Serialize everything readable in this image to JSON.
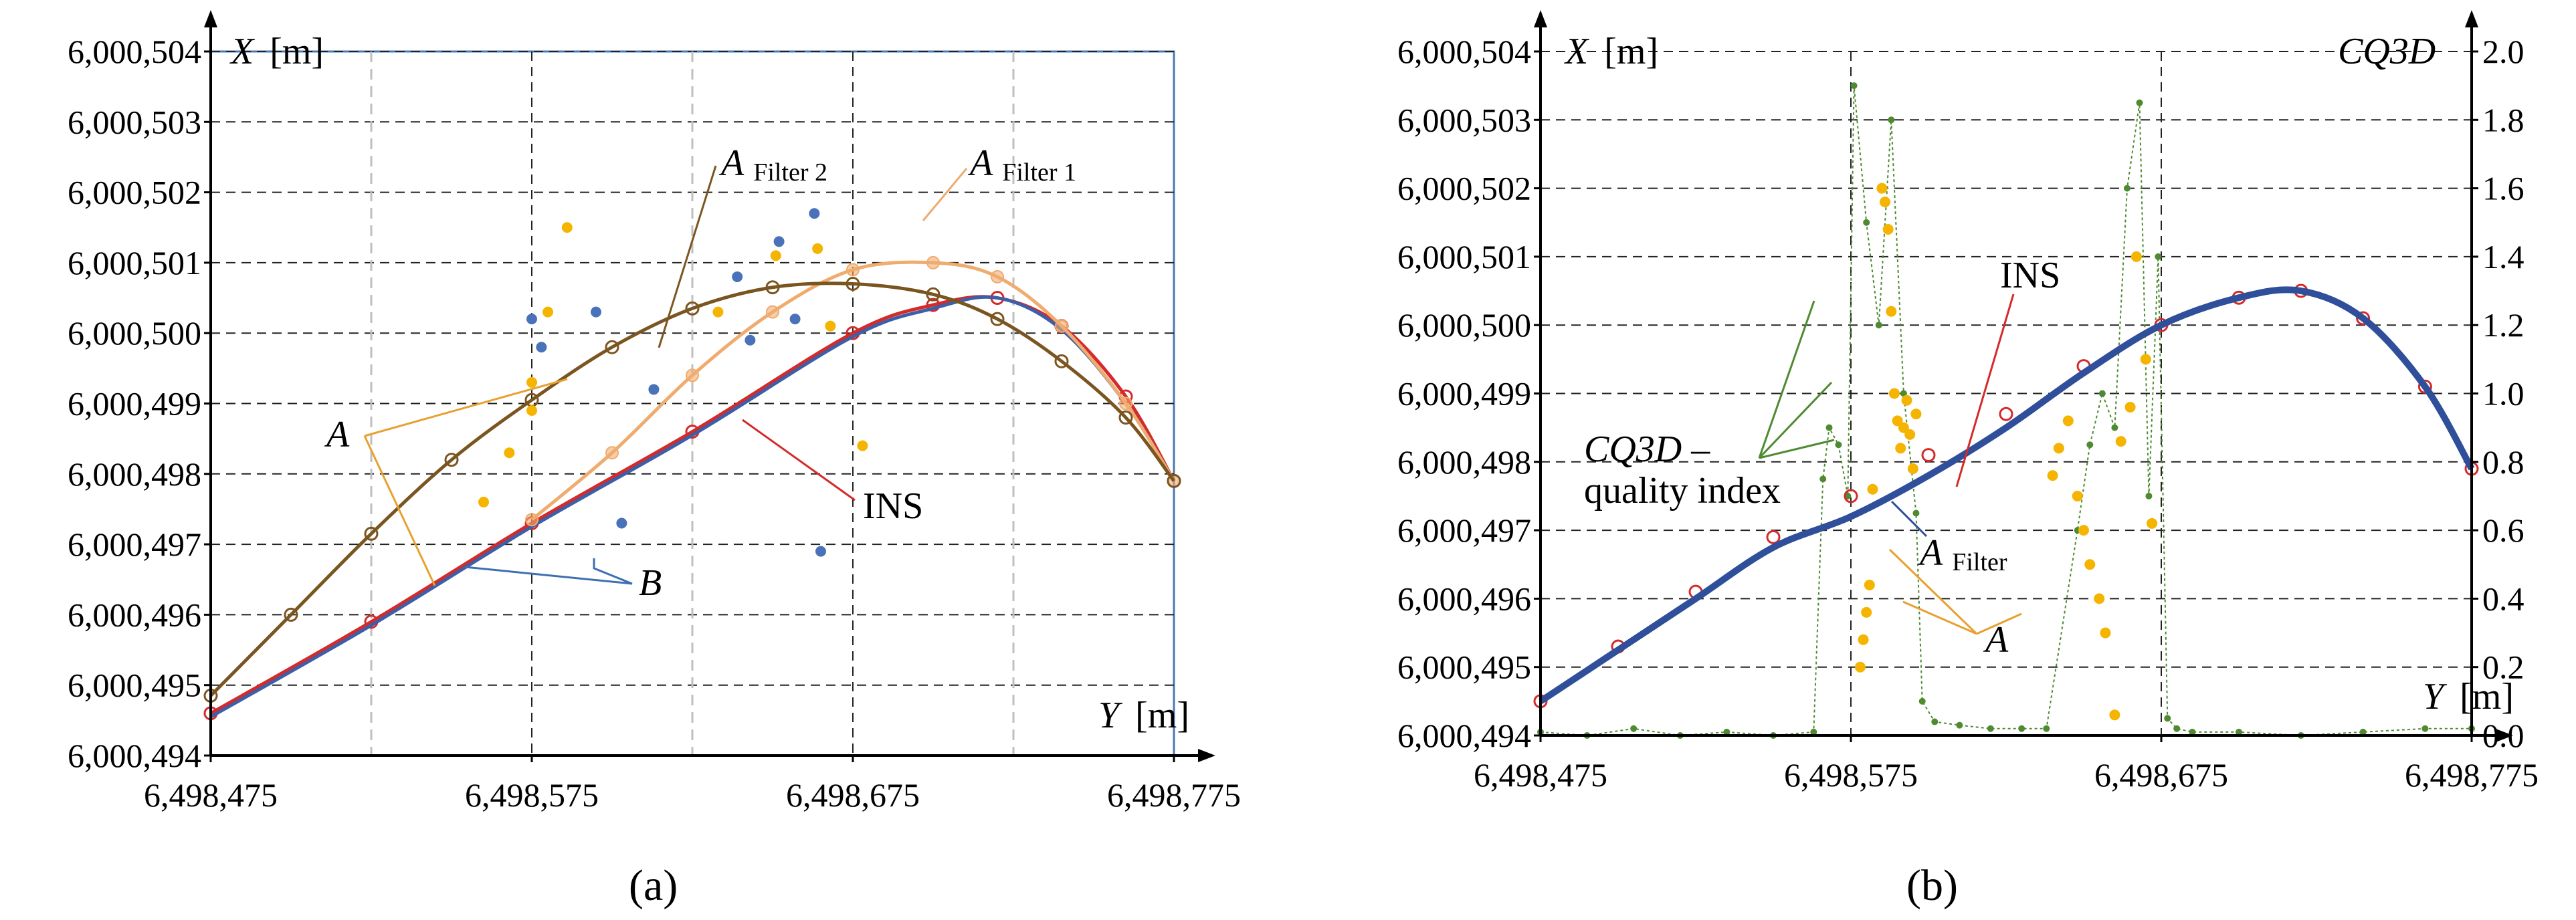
{
  "chart_data": [
    {
      "type": "scatter",
      "panel": "a",
      "caption": "(a)",
      "x_axis": {
        "label_var": "Y",
        "label_unit": "[m]",
        "range": [
          6498475,
          6498775
        ],
        "ticks": [
          6498475,
          6498575,
          6498675,
          6498775
        ],
        "tick_labels": [
          "6,498,475",
          "6,498,575",
          "6,498,675",
          "6,498,775"
        ],
        "gridlines": [
          6498525,
          6498575,
          6498625,
          6498675,
          6498725
        ]
      },
      "y_axis": {
        "label_var": "X",
        "label_unit": "[m]",
        "range": [
          6000494,
          6000504
        ],
        "ticks": [
          6000494,
          6000495,
          6000496,
          6000497,
          6000498,
          6000499,
          6000500,
          6000501,
          6000502,
          6000503,
          6000504
        ],
        "tick_labels": [
          "6,000,494",
          "6,000,495",
          "6,000,496",
          "6,000,497",
          "6,000,498",
          "6,000,499",
          "6,000,500",
          "6,000,501",
          "6,000,502",
          "6,000,503",
          "6,000,504"
        ]
      },
      "series": [
        {
          "name": "INS",
          "style": "line-open-circles",
          "color": "#d42a2a",
          "x": [
            6498475,
            6498525,
            6498575,
            6498625,
            6498675,
            6498700,
            6498720,
            6498740,
            6498760,
            6498775
          ],
          "y": [
            6000494.6,
            6000495.9,
            6000497.3,
            6000498.6,
            6000500.0,
            6000500.4,
            6000500.5,
            6000500.1,
            6000499.1,
            6000497.9
          ]
        },
        {
          "name": "B",
          "style": "line",
          "color": "#3d5fa8",
          "x": [
            6498475,
            6498525,
            6498575,
            6498625,
            6498675,
            6498700,
            6498720,
            6498740,
            6498760,
            6498775
          ],
          "y": [
            6000494.55,
            6000495.85,
            6000497.25,
            6000498.55,
            6000499.95,
            6000500.35,
            6000500.5,
            6000500.05,
            6000499.0,
            6000497.9
          ]
        },
        {
          "name": "A Filter 1",
          "style": "line-filled-circles",
          "color": "#f0ab6e",
          "x": [
            6498575,
            6498600,
            6498625,
            6498650,
            6498675,
            6498700,
            6498720,
            6498740,
            6498760,
            6498775
          ],
          "y": [
            6000497.35,
            6000498.3,
            6000499.4,
            6000500.3,
            6000500.9,
            6000501.0,
            6000500.8,
            6000500.1,
            6000499.0,
            6000497.9
          ]
        },
        {
          "name": "A Filter 2",
          "style": "line-open-circles",
          "color": "#7a5520",
          "x": [
            6498475,
            6498500,
            6498525,
            6498550,
            6498575,
            6498600,
            6498625,
            6498650,
            6498675,
            6498700,
            6498720,
            6498740,
            6498760,
            6498775
          ],
          "y": [
            6000494.85,
            6000496.0,
            6000497.15,
            6000498.2,
            6000499.05,
            6000499.8,
            6000500.35,
            6000500.65,
            6000500.7,
            6000500.55,
            6000500.2,
            6000499.6,
            6000498.8,
            6000497.9
          ]
        },
        {
          "name": "A",
          "style": "points",
          "color": "#f5b400",
          "x": [
            6498575,
            6498580,
            6498586,
            6498560,
            6498568,
            6498575,
            6498633,
            6498651,
            6498664,
            6498668,
            6498678
          ],
          "y": [
            6000499.3,
            6000500.3,
            6000501.5,
            6000497.6,
            6000498.3,
            6000498.9,
            6000500.3,
            6000501.1,
            6000501.2,
            6000500.1,
            6000498.4
          ]
        },
        {
          "name": "B",
          "style": "points",
          "color": "#4a72b8",
          "x": [
            6498575,
            6498578,
            6498595,
            6498603,
            6498613,
            6498639,
            6498643,
            6498652,
            6498657,
            6498663,
            6498665
          ],
          "y": [
            6000500.2,
            6000499.8,
            6000500.3,
            6000497.3,
            6000499.2,
            6000500.8,
            6000499.9,
            6000501.3,
            6000500.2,
            6000501.7,
            6000496.9
          ]
        }
      ],
      "annotations": [
        {
          "text": "A",
          "sub": "",
          "italic": true,
          "color": "#e8a030"
        },
        {
          "text": "B",
          "sub": "",
          "italic": true,
          "color": "#3d6fb0"
        },
        {
          "text": "INS",
          "sub": "",
          "italic": false,
          "color": "#d42a2a"
        },
        {
          "text": "A",
          "sub": "Filter 1",
          "italic": true,
          "color": "#f0ab6e"
        },
        {
          "text": "A",
          "sub": "Filter 2",
          "italic": true,
          "color": "#7a5520"
        }
      ]
    },
    {
      "type": "scatter",
      "panel": "b",
      "caption": "(b)",
      "x_axis": {
        "label_var": "Y",
        "label_unit": "[m]",
        "range": [
          6498475,
          6498775
        ],
        "ticks": [
          6498475,
          6498575,
          6498675,
          6498775
        ],
        "tick_labels": [
          "6,498,475",
          "6,498,575",
          "6,498,675",
          "6,498,775"
        ],
        "gridlines": [
          6498575,
          6498675
        ]
      },
      "y_axis": {
        "label_var": "X",
        "label_unit": "[m]",
        "range": [
          6000494,
          6000504
        ],
        "ticks": [
          6000494,
          6000495,
          6000496,
          6000497,
          6000498,
          6000499,
          6000500,
          6000501,
          6000502,
          6000503,
          6000504
        ],
        "tick_labels": [
          "6,000,494",
          "6,000,495",
          "6,000,496",
          "6,000,497",
          "6,000,498",
          "6,000,499",
          "6,000,500",
          "6,000,501",
          "6,000,502",
          "6,000,503",
          "6,000,504"
        ]
      },
      "y2_axis": {
        "label": "CQ3D",
        "range": [
          0,
          2
        ],
        "ticks": [
          0,
          0.2,
          0.4,
          0.6,
          0.8,
          1.0,
          1.2,
          1.4,
          1.6,
          1.8,
          2.0
        ],
        "tick_labels": [
          "0.0",
          "0.2",
          "0.4",
          "0.6",
          "0.8",
          "1.0",
          "1.2",
          "1.4",
          "1.6",
          "1.8",
          "2.0"
        ]
      },
      "series": [
        {
          "name": "CQ3D – quality index",
          "axis": "y2",
          "style": "points-line",
          "color": "#4e8a30",
          "x": [
            6498475,
            6498490,
            6498505,
            6498520,
            6498535,
            6498550,
            6498563,
            6498566,
            6498568,
            6498571,
            6498574,
            6498576,
            6498580,
            6498584,
            6498588,
            6498592,
            6498596,
            6498598,
            6498602,
            6498610,
            6498620,
            6498630,
            6498638,
            6498648,
            6498652,
            6498656,
            6498660,
            6498664,
            6498668,
            6498671,
            6498674,
            6498677,
            6498680,
            6498685,
            6498700,
            6498720,
            6498740,
            6498760,
            6498775
          ],
          "y": [
            0.01,
            0.0,
            0.02,
            0.0,
            0.01,
            0.0,
            0.01,
            0.75,
            0.9,
            0.85,
            0.7,
            1.9,
            1.5,
            1.2,
            1.8,
            1.0,
            0.65,
            0.1,
            0.04,
            0.03,
            0.02,
            0.02,
            0.02,
            0.6,
            0.85,
            1.0,
            0.9,
            1.6,
            1.85,
            0.7,
            1.4,
            0.05,
            0.02,
            0.01,
            0.01,
            0.0,
            0.01,
            0.02,
            0.02
          ]
        },
        {
          "name": "INS",
          "axis": "y",
          "style": "open-circles",
          "color": "#d42a2a",
          "x": [
            6498475,
            6498500,
            6498525,
            6498550,
            6498575,
            6498600,
            6498625,
            6498650,
            6498675,
            6498700,
            6498720,
            6498740,
            6498760,
            6498775
          ],
          "y": [
            6000494.5,
            6000495.3,
            6000496.1,
            6000496.9,
            6000497.5,
            6000498.1,
            6000498.7,
            6000499.4,
            6000500.0,
            6000500.4,
            6000500.5,
            6000500.1,
            6000499.1,
            6000497.9
          ]
        },
        {
          "name": "A Filter",
          "axis": "y",
          "style": "line",
          "color": "#2f4f9a",
          "x": [
            6498475,
            6498500,
            6498525,
            6498550,
            6498575,
            6498600,
            6498625,
            6498650,
            6498675,
            6498700,
            6498720,
            6498740,
            6498760,
            6498775
          ],
          "y": [
            6000494.5,
            6000495.25,
            6000496.0,
            6000496.75,
            6000497.2,
            6000497.8,
            6000498.5,
            6000499.3,
            6000500.0,
            6000500.4,
            6000500.5,
            6000500.1,
            6000499.1,
            6000497.9
          ]
        },
        {
          "name": "A",
          "axis": "y",
          "style": "points",
          "color": "#f5b400",
          "x": [
            6498578,
            6498579,
            6498580,
            6498581,
            6498582,
            6498586,
            6498587,
            6498588,
            6498589,
            6498590,
            6498591,
            6498592,
            6498593,
            6498594,
            6498595,
            6498596,
            6498585,
            6498640,
            6498642,
            6498645,
            6498648,
            6498650,
            6498652,
            6498655,
            6498657,
            6498660,
            6498662,
            6498665,
            6498667,
            6498670,
            6498672
          ],
          "y": [
            6000495.0,
            6000495.4,
            6000495.8,
            6000496.2,
            6000497.6,
            6000501.8,
            6000501.4,
            6000500.2,
            6000499.0,
            6000498.6,
            6000498.2,
            6000498.5,
            6000498.9,
            6000498.4,
            6000497.9,
            6000498.7,
            6000502.0,
            6000497.8,
            6000498.2,
            6000498.6,
            6000497.5,
            6000497.0,
            6000496.5,
            6000496.0,
            6000495.5,
            6000494.3,
            6000498.3,
            6000498.8,
            6000501.0,
            6000499.5,
            6000497.1
          ]
        }
      ],
      "annotations": [
        {
          "text": "INS",
          "sub": "",
          "italic": false,
          "color": "#d42a2a"
        },
        {
          "text": "A",
          "sub": "Filter",
          "italic": true,
          "color": "#2f4f9a"
        },
        {
          "text": "A",
          "sub": "",
          "italic": true,
          "color": "#e8a030"
        },
        {
          "text": "CQ3D –",
          "sub": "",
          "italic": true,
          "color": "#4e8a30"
        },
        {
          "text": "quality index",
          "sub": "",
          "italic": false,
          "color": "#4e8a30"
        }
      ]
    }
  ]
}
